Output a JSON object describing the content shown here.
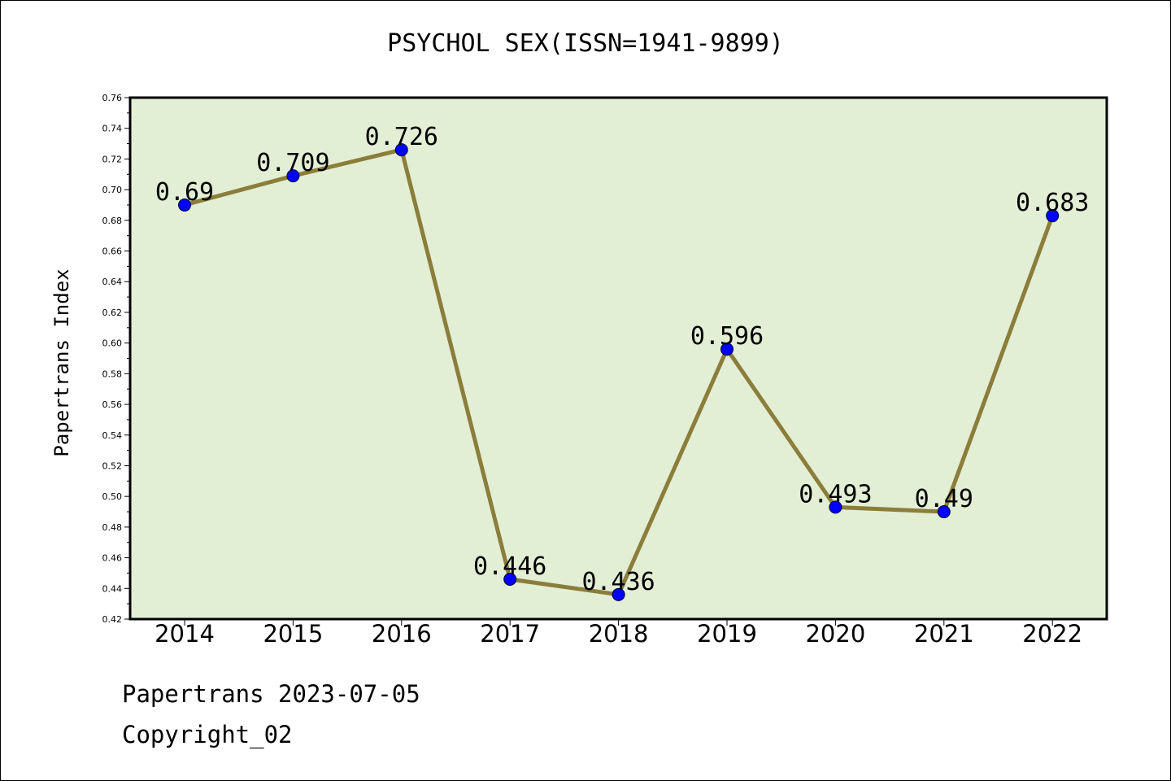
{
  "colors": {
    "plot_background": "#e2efd5",
    "line": "#8b7d3a",
    "marker": "#0000ff",
    "axis": "#000000"
  },
  "chart_data": {
    "type": "line",
    "title": "PSYCHOL SEX(ISSN=1941-9899)",
    "ylabel": "Papertrans Index",
    "xlabel": "",
    "categories": [
      "2014",
      "2015",
      "2016",
      "2017",
      "2018",
      "2019",
      "2020",
      "2021",
      "2022"
    ],
    "series": [
      {
        "values": [
          0.69,
          0.709,
          0.726,
          0.446,
          0.436,
          0.596,
          0.493,
          0.49,
          0.683
        ],
        "labels": [
          "0.69",
          "0.709",
          "0.726",
          "0.446",
          "0.436",
          "0.596",
          "0.493",
          "0.49",
          "0.683"
        ]
      }
    ],
    "ylim": [
      0.42,
      0.76
    ],
    "yticks": [
      "0.42",
      "0.44",
      "0.46",
      "0.48",
      "0.50",
      "0.52",
      "0.54",
      "0.56",
      "0.58",
      "0.60",
      "0.62",
      "0.64",
      "0.66",
      "0.68",
      "0.70",
      "0.72",
      "0.74",
      "0.76"
    ],
    "grid": false,
    "legend": "none"
  },
  "footer": {
    "line1": "Papertrans 2023-07-05",
    "line2": "Copyright_02"
  }
}
